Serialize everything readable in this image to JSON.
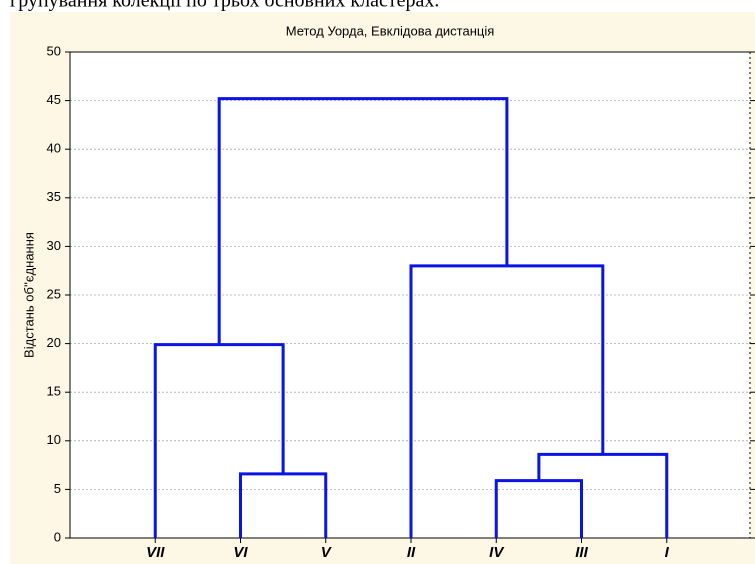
{
  "caption": "групування колекції по трьох основних кластерах.",
  "chart_data": {
    "type": "dendrogram",
    "title": "Метод Уорда, Евклідова дистанція",
    "ylabel": "Відстань об''єднання",
    "categories": [
      "VII",
      "VI",
      "V",
      "II",
      "IV",
      "III",
      "I"
    ],
    "merges": [
      {
        "pair": [
          1,
          2
        ],
        "height": 6.6
      },
      {
        "pair": [
          4,
          5
        ],
        "height": 5.9
      },
      {
        "pair": [
          8,
          6
        ],
        "height": 8.6
      },
      {
        "pair": [
          0,
          7
        ],
        "height": 19.9
      },
      {
        "pair": [
          3,
          9
        ],
        "height": 28
      },
      {
        "pair": [
          10,
          11
        ],
        "height": 45.2
      }
    ],
    "color": "#0a14e6",
    "ylim": [
      0,
      50
    ],
    "yticks": [
      0,
      5,
      10,
      15,
      20,
      25,
      30,
      35,
      40,
      45,
      50
    ],
    "grid": true
  }
}
